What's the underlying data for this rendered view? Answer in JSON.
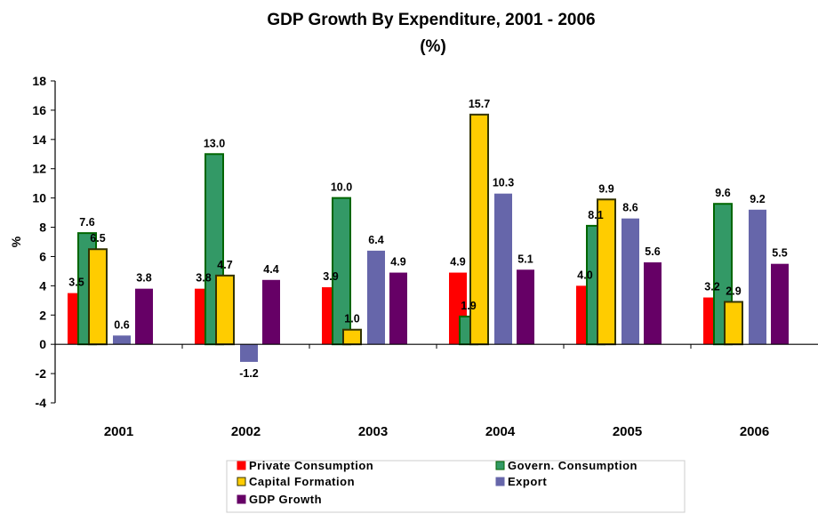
{
  "chart_data": {
    "type": "bar",
    "title": "GDP Growth By Expenditure, 2001 - 2006",
    "subtitle": "(%)",
    "xlabel": "",
    "ylabel": "%",
    "ylim": [
      -4,
      18
    ],
    "yticks": [
      18,
      16,
      14,
      12,
      10,
      8,
      6,
      4,
      2,
      0,
      -2,
      -4
    ],
    "grid": false,
    "legend_position": "bottom",
    "categories": [
      "2001",
      "2002",
      "2003",
      "2004",
      "2005",
      "2006"
    ],
    "series": [
      {
        "name": "Private Consumption",
        "color": "#ff0000",
        "values": [
          3.5,
          3.8,
          3.9,
          4.9,
          4.0,
          3.2
        ],
        "labels": [
          "3.5",
          "3.8",
          "3.9",
          "4.9",
          "4.0",
          "3.2"
        ]
      },
      {
        "name": "Govern. Consumption",
        "color": "#339966",
        "values": [
          7.6,
          13.0,
          10.0,
          1.9,
          8.1,
          9.6
        ],
        "labels": [
          "7.6",
          "13.0",
          "10.0",
          "1.9",
          "8.1",
          "9.6"
        ]
      },
      {
        "name": "Capital Formation",
        "color": "#ffcc00",
        "values": [
          6.5,
          4.7,
          1.0,
          15.7,
          9.9,
          2.9
        ],
        "labels": [
          "6.5",
          "4.7",
          "1.0",
          "15.7",
          "9.9",
          "2.9"
        ]
      },
      {
        "name": "Export",
        "color": "#6666aa",
        "values": [
          0.6,
          -1.2,
          6.4,
          10.3,
          8.6,
          9.2
        ],
        "labels": [
          "0.6",
          "-1.2",
          "6.4",
          "10.3",
          "8.6",
          "9.2"
        ]
      },
      {
        "name": "GDP Growth",
        "color": "#660066",
        "values": [
          3.8,
          4.4,
          4.9,
          5.1,
          5.6,
          5.5
        ],
        "labels": [
          "3.8",
          "4.4",
          "4.9",
          "5.1",
          "5.6",
          "5.5"
        ]
      }
    ]
  }
}
